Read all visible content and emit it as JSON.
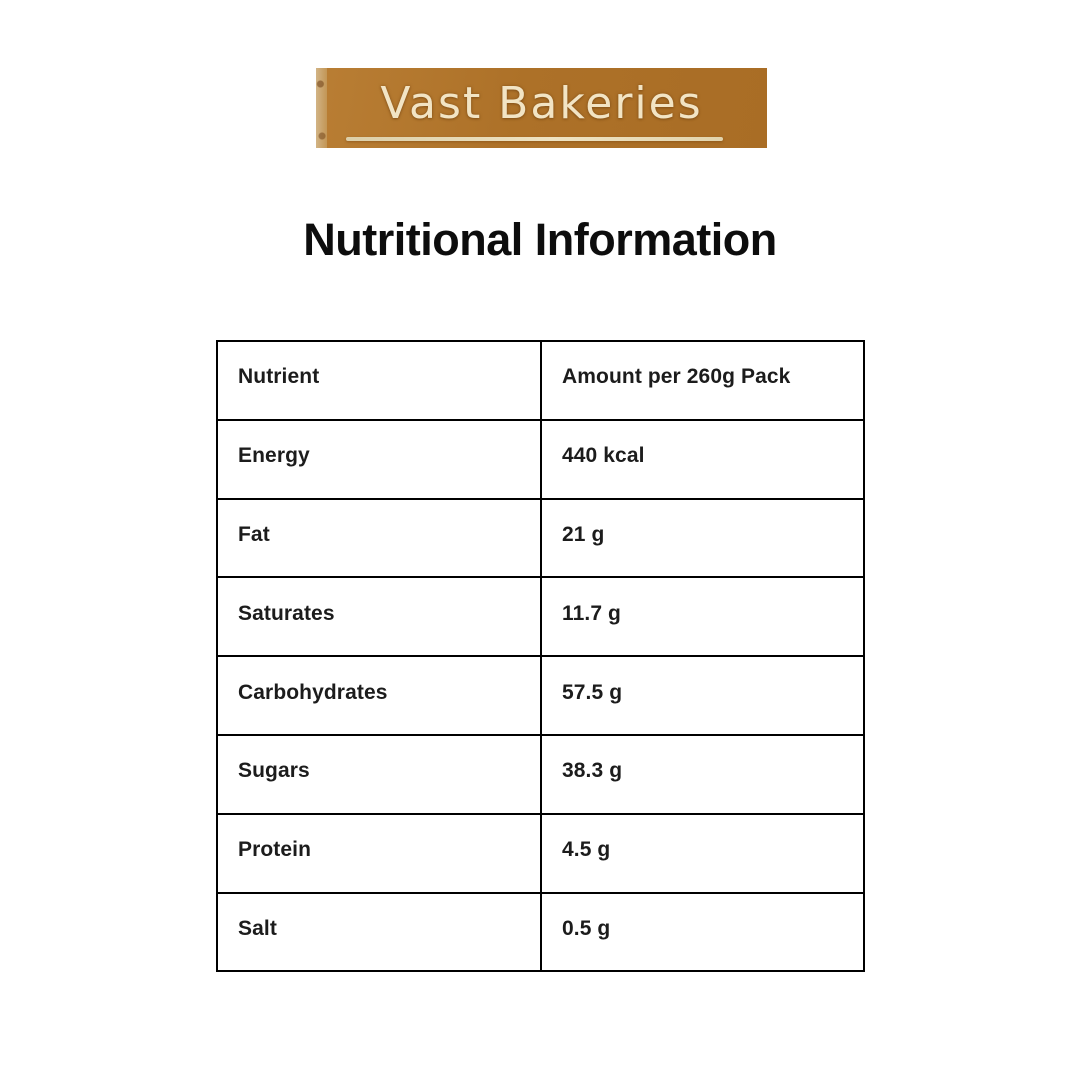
{
  "logo": {
    "brand": "Vast Bakeries",
    "bg_color": "#ad7128",
    "text_color": "#f2e4c4"
  },
  "title": "Nutritional Information",
  "table": {
    "headers": [
      "Nutrient",
      "Amount per 260g Pack"
    ],
    "rows": [
      {
        "nutrient": "Energy",
        "amount": "440 kcal"
      },
      {
        "nutrient": "Fat",
        "amount": "21 g"
      },
      {
        "nutrient": "Saturates",
        "amount": "11.7 g"
      },
      {
        "nutrient": "Carbohydrates",
        "amount": "57.5 g"
      },
      {
        "nutrient": "Sugars",
        "amount": "38.3 g"
      },
      {
        "nutrient": "Protein",
        "amount": "4.5 g"
      },
      {
        "nutrient": "Salt",
        "amount": "0.5 g"
      }
    ]
  }
}
